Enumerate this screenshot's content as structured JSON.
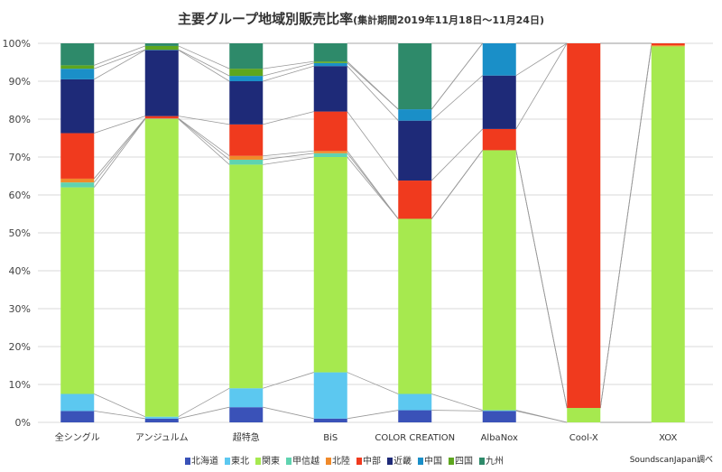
{
  "chart_data": {
    "type": "bar",
    "stacked": true,
    "percent": true,
    "title": "主要グループ地域別販売比率",
    "subtitle": "(集計期間2019年11月18日～11月24日)",
    "source": "SoundscanJapan調べ",
    "ylim": [
      0,
      100
    ],
    "yticks": [
      "0%",
      "10%",
      "20%",
      "30%",
      "40%",
      "50%",
      "60%",
      "70%",
      "80%",
      "90%",
      "100%"
    ],
    "grid": true,
    "legend_position": "bottom",
    "categories": [
      "全シングル",
      "アンジュルム",
      "超特急",
      "BiS",
      "COLOR CREATION",
      "AlbaNox",
      "Cool-X",
      "XOX"
    ],
    "series": [
      {
        "name": "北海道",
        "color": "#3a52b8",
        "values": [
          3.0,
          1.0,
          4.0,
          1.0,
          3.2,
          3.0,
          0,
          0
        ]
      },
      {
        "name": "東北",
        "color": "#5cc8f0",
        "values": [
          4.5,
          0.5,
          5.0,
          12.2,
          4.3,
          0.2,
          0,
          0
        ]
      },
      {
        "name": "関東",
        "color": "#a6e94f",
        "values": [
          54.5,
          78.5,
          59.0,
          56.8,
          46.2,
          68.6,
          3.8,
          99.2
        ]
      },
      {
        "name": "甲信越",
        "color": "#5fd3b0",
        "values": [
          1.3,
          0.1,
          1.3,
          1.0,
          0,
          0,
          0,
          0
        ]
      },
      {
        "name": "北陸",
        "color": "#f08a2a",
        "values": [
          1.0,
          0.1,
          1.0,
          0.6,
          0,
          0,
          0,
          0.3
        ]
      },
      {
        "name": "中部",
        "color": "#f03a1e",
        "values": [
          12.0,
          0.6,
          8.3,
          10.4,
          10.1,
          5.6,
          96.2,
          0.5
        ]
      },
      {
        "name": "近畿",
        "color": "#1e2a78",
        "values": [
          14.2,
          17.4,
          11.4,
          12.0,
          15.8,
          14.1,
          0,
          0
        ]
      },
      {
        "name": "中国",
        "color": "#1a8fc8",
        "values": [
          2.8,
          0.1,
          1.4,
          0.8,
          3.0,
          8.5,
          0,
          0
        ]
      },
      {
        "name": "四国",
        "color": "#5ea61e",
        "values": [
          0.9,
          1.0,
          1.9,
          0.4,
          0,
          0,
          0,
          0
        ]
      },
      {
        "name": "九州",
        "color": "#2e8a6a",
        "values": [
          5.8,
          0.7,
          6.7,
          4.8,
          17.4,
          0,
          0,
          0
        ]
      }
    ]
  }
}
